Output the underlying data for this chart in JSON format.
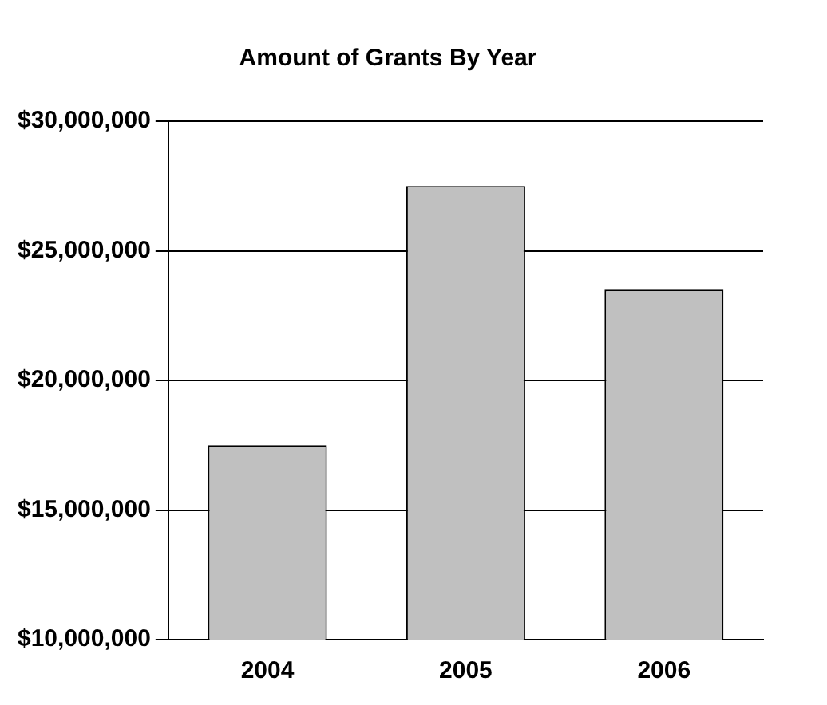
{
  "chart_data": {
    "type": "bar",
    "title": "Amount of Grants By Year",
    "categories": [
      "2004",
      "2005",
      "2006"
    ],
    "values": [
      17500000,
      27500000,
      23500000
    ],
    "color": "#c0c0c0",
    "ylim": [
      10000000,
      30000000
    ],
    "yticks": [
      {
        "value": 10000000,
        "label": "$10,000,000"
      },
      {
        "value": 15000000,
        "label": "$15,000,000"
      },
      {
        "value": 20000000,
        "label": "$20,000,000"
      },
      {
        "value": 25000000,
        "label": "$25,000,000"
      },
      {
        "value": 30000000,
        "label": "$30,000,000"
      }
    ],
    "grid": "y",
    "legend": false
  }
}
